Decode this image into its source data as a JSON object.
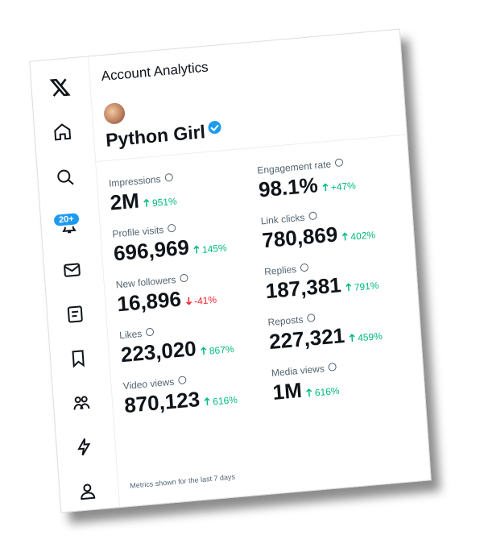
{
  "header": {
    "title": "Account Analytics"
  },
  "nav": {
    "badge": "20+"
  },
  "profile": {
    "name": "Python Girl"
  },
  "metrics": [
    {
      "label": "Impressions",
      "value": "2M",
      "change": "951%"
    },
    {
      "label": "Engagement rate",
      "value": "98.1%",
      "change": "+47%"
    },
    {
      "label": "Profile visits",
      "value": "696,969",
      "change": "145%"
    },
    {
      "label": "Link clicks",
      "value": "780,869",
      "change": "402%"
    },
    {
      "label": "New followers",
      "value": "16,896",
      "change": "-41%"
    },
    {
      "label": "Replies",
      "value": "187,381",
      "change": "791%"
    },
    {
      "label": "Likes",
      "value": "223,020",
      "change": "867%"
    },
    {
      "label": "Reposts",
      "value": "227,321",
      "change": "459%"
    },
    {
      "label": "Video views",
      "value": "870,123",
      "change": "616%"
    },
    {
      "label": "Media views",
      "value": "1M",
      "change": "616%"
    }
  ],
  "footer": {
    "note": "Metrics shown for the last 7 days"
  }
}
